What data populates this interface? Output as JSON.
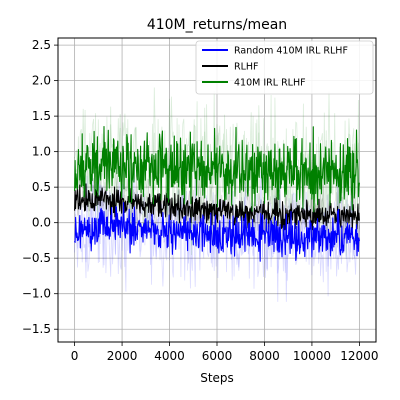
{
  "chart_data": {
    "type": "line",
    "title": "410M_returns/mean",
    "xlabel": "Steps",
    "ylabel": "",
    "xlim": [
      -700,
      12700
    ],
    "ylim": [
      -1.68,
      2.6
    ],
    "xticks": [
      0,
      2000,
      4000,
      6000,
      8000,
      10000,
      12000
    ],
    "xtick_labels": [
      "0",
      "2000",
      "4000",
      "6000",
      "8000",
      "10000",
      "12000"
    ],
    "yticks": [
      -1.5,
      -1.0,
      -0.5,
      0.0,
      0.5,
      1.0,
      1.5,
      2.0,
      2.5
    ],
    "ytick_labels": [
      "−1.5",
      "−1.0",
      "−0.5",
      "0.0",
      "0.5",
      "1.0",
      "1.5",
      "2.0",
      "2.5"
    ],
    "grid": true,
    "legend_position": "top-right",
    "x_range": [
      0,
      12000
    ],
    "series": [
      {
        "name": "Random 410M IRL RLHF",
        "color": "#0000ff",
        "x": [
          0,
          1000,
          2000,
          3000,
          4000,
          5000,
          6000,
          7000,
          8000,
          9000,
          10000,
          11000,
          12000
        ],
        "mean": [
          -0.1,
          -0.02,
          -0.05,
          -0.08,
          -0.12,
          -0.15,
          -0.18,
          -0.2,
          -0.18,
          -0.2,
          -0.22,
          -0.2,
          -0.2
        ],
        "spread": 0.22,
        "band_spread": 0.55
      },
      {
        "name": "RLHF",
        "color": "#000000",
        "x": [
          0,
          1000,
          2000,
          3000,
          4000,
          5000,
          6000,
          7000,
          8000,
          9000,
          10000,
          11000,
          12000
        ],
        "mean": [
          0.3,
          0.32,
          0.28,
          0.25,
          0.22,
          0.2,
          0.18,
          0.15,
          0.12,
          0.1,
          0.1,
          0.08,
          0.08
        ],
        "spread": 0.16,
        "band_spread": 0.3
      },
      {
        "name": "410M IRL RLHF",
        "color": "#008000",
        "x": [
          0,
          1000,
          2000,
          3000,
          4000,
          5000,
          6000,
          7000,
          8000,
          9000,
          10000,
          11000,
          12000
        ],
        "mean": [
          0.8,
          0.82,
          0.8,
          0.78,
          0.76,
          0.75,
          0.74,
          0.72,
          0.7,
          0.7,
          0.7,
          0.68,
          0.7
        ],
        "spread": 0.38,
        "band_spread": 0.7
      }
    ]
  }
}
